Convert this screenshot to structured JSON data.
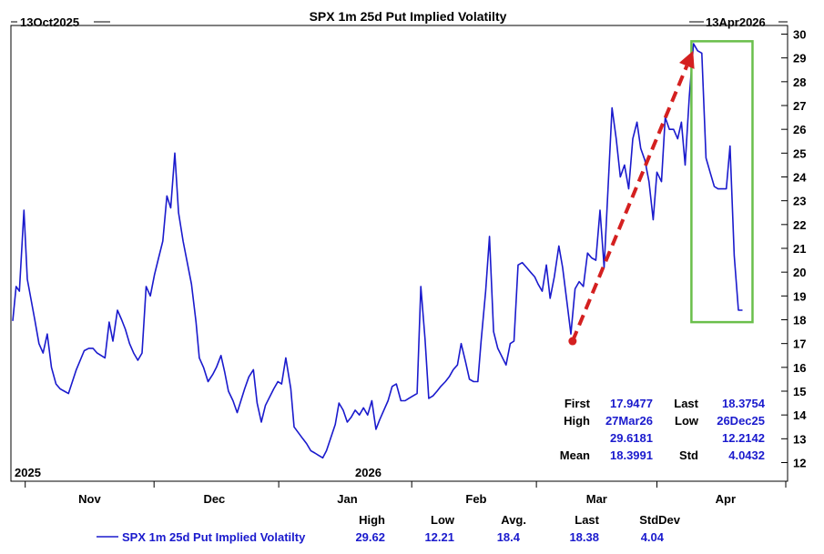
{
  "chart_data": {
    "type": "line",
    "title": "SPX 1m 25d Put Implied Volatilty",
    "start_label": "13Oct2025",
    "end_label": "13Apr2026",
    "xlabel": "",
    "ylabel": "",
    "ylim": [
      11.5,
      30
    ],
    "yticks": [
      12,
      13,
      14,
      15,
      16,
      17,
      18,
      19,
      20,
      21,
      22,
      23,
      24,
      25,
      26,
      27,
      28,
      29,
      30
    ],
    "x_month_labels": [
      {
        "label": "Nov",
        "day": 18.5
      },
      {
        "label": "Dec",
        "day": 48.5
      },
      {
        "label": "Jan",
        "day": 80.5
      },
      {
        "label": "Feb",
        "day": 111.5
      },
      {
        "label": "Mar",
        "day": 140.5
      },
      {
        "label": "Apr",
        "day": 171.5
      }
    ],
    "year_labels": [
      {
        "label": "2025",
        "day": 0.5
      },
      {
        "label": "2026",
        "day": 81
      }
    ],
    "x_total_days": 186,
    "series": [
      {
        "name": "SPX 1m 25d Put Implied Volatilty",
        "color": "#1a1acd",
        "points": [
          [
            0,
            17.95
          ],
          [
            0.8,
            19.4
          ],
          [
            1.6,
            19.2
          ],
          [
            2.7,
            22.6
          ],
          [
            3.5,
            19.7
          ],
          [
            5.3,
            18.0
          ],
          [
            6.3,
            17.0
          ],
          [
            7.3,
            16.6
          ],
          [
            8.3,
            17.4
          ],
          [
            9.3,
            16.0
          ],
          [
            10.4,
            15.3
          ],
          [
            11.4,
            15.1
          ],
          [
            12.4,
            15.0
          ],
          [
            13.4,
            14.9
          ],
          [
            15.3,
            15.9
          ],
          [
            17.2,
            16.7
          ],
          [
            18.3,
            16.8
          ],
          [
            19.3,
            16.8
          ],
          [
            20.3,
            16.6
          ],
          [
            22.2,
            16.4
          ],
          [
            23.2,
            17.9
          ],
          [
            24.1,
            17.1
          ],
          [
            25.2,
            18.4
          ],
          [
            26.2,
            18.0
          ],
          [
            27.1,
            17.6
          ],
          [
            28.1,
            17.0
          ],
          [
            29.1,
            16.6
          ],
          [
            30.1,
            16.3
          ],
          [
            31.1,
            16.6
          ],
          [
            32.1,
            19.4
          ],
          [
            33.1,
            19.0
          ],
          [
            34.1,
            19.9
          ],
          [
            35.1,
            20.6
          ],
          [
            36.1,
            21.3
          ],
          [
            37.1,
            23.2
          ],
          [
            38.0,
            22.7
          ],
          [
            39.0,
            25.0
          ],
          [
            39.9,
            22.5
          ],
          [
            41.0,
            21.3
          ],
          [
            43.0,
            19.5
          ],
          [
            44.1,
            17.9
          ],
          [
            44.9,
            16.4
          ],
          [
            45.9,
            16.0
          ],
          [
            47.0,
            15.4
          ],
          [
            48.1,
            15.7
          ],
          [
            49.0,
            16.0
          ],
          [
            50.1,
            16.5
          ],
          [
            51.0,
            15.8
          ],
          [
            51.9,
            15.0
          ],
          [
            53.0,
            14.6
          ],
          [
            54.0,
            14.1
          ],
          [
            55.8,
            15.1
          ],
          [
            56.8,
            15.6
          ],
          [
            57.9,
            15.9
          ],
          [
            58.8,
            14.5
          ],
          [
            59.8,
            13.7
          ],
          [
            60.8,
            14.4
          ],
          [
            62.8,
            15.1
          ],
          [
            63.8,
            15.4
          ],
          [
            64.7,
            15.3
          ],
          [
            65.7,
            16.4
          ],
          [
            66.9,
            15.1
          ],
          [
            67.7,
            13.5
          ],
          [
            69.8,
            13.0
          ],
          [
            70.7,
            12.8
          ],
          [
            71.7,
            12.5
          ],
          [
            72.7,
            12.4
          ],
          [
            73.6,
            12.3
          ],
          [
            74.6,
            12.2
          ],
          [
            75.5,
            12.5
          ],
          [
            77.6,
            13.6
          ],
          [
            78.5,
            14.5
          ],
          [
            79.5,
            14.2
          ],
          [
            80.5,
            13.7
          ],
          [
            81.4,
            13.9
          ],
          [
            82.4,
            14.2
          ],
          [
            83.4,
            14.0
          ],
          [
            84.4,
            14.3
          ],
          [
            85.4,
            14.0
          ],
          [
            86.4,
            14.6
          ],
          [
            87.4,
            13.4
          ],
          [
            88.3,
            13.8
          ],
          [
            89.3,
            14.2
          ],
          [
            90.3,
            14.6
          ],
          [
            91.3,
            15.2
          ],
          [
            92.3,
            15.3
          ],
          [
            93.4,
            14.6
          ],
          [
            94.4,
            14.6
          ],
          [
            95.3,
            14.7
          ],
          [
            96.3,
            14.8
          ],
          [
            97.3,
            14.9
          ],
          [
            98.2,
            19.4
          ],
          [
            99.2,
            17.2
          ],
          [
            100.1,
            14.7
          ],
          [
            101.1,
            14.8
          ],
          [
            102.1,
            15.0
          ],
          [
            103.0,
            15.2
          ],
          [
            104.1,
            15.4
          ],
          [
            105.0,
            15.6
          ],
          [
            106.0,
            15.9
          ],
          [
            107.0,
            16.1
          ],
          [
            107.9,
            17.0
          ],
          [
            109.0,
            16.2
          ],
          [
            109.9,
            15.5
          ],
          [
            110.9,
            15.4
          ],
          [
            111.9,
            15.4
          ],
          [
            112.7,
            17.1
          ],
          [
            113.8,
            19.2
          ],
          [
            114.7,
            21.5
          ],
          [
            115.7,
            17.5
          ],
          [
            116.7,
            16.8
          ],
          [
            118.7,
            16.1
          ],
          [
            119.7,
            17.0
          ],
          [
            120.6,
            17.1
          ],
          [
            121.6,
            20.3
          ],
          [
            122.6,
            20.4
          ],
          [
            123.6,
            20.2
          ],
          [
            124.6,
            20.0
          ],
          [
            125.6,
            19.8
          ],
          [
            126.4,
            19.5
          ],
          [
            127.4,
            19.2
          ],
          [
            128.4,
            20.3
          ],
          [
            129.3,
            18.9
          ],
          [
            130.3,
            19.8
          ],
          [
            131.4,
            21.1
          ],
          [
            132.3,
            20.2
          ],
          [
            133.3,
            18.8
          ],
          [
            134.3,
            17.4
          ],
          [
            135.3,
            19.3
          ],
          [
            136.3,
            19.6
          ],
          [
            137.3,
            19.4
          ],
          [
            138.3,
            20.8
          ],
          [
            139.3,
            20.6
          ],
          [
            140.3,
            20.5
          ],
          [
            141.3,
            22.6
          ],
          [
            142.3,
            20.2
          ],
          [
            144.2,
            26.9
          ],
          [
            145.2,
            25.6
          ],
          [
            146.2,
            24.0
          ],
          [
            147.2,
            24.5
          ],
          [
            148.2,
            23.5
          ],
          [
            149.2,
            25.6
          ],
          [
            150.2,
            26.3
          ],
          [
            151.1,
            25.2
          ],
          [
            152.1,
            24.7
          ],
          [
            153.1,
            23.8
          ],
          [
            154.1,
            22.2
          ],
          [
            155.0,
            24.2
          ],
          [
            156.1,
            23.8
          ],
          [
            157.0,
            26.5
          ],
          [
            158.0,
            26.0
          ],
          [
            159.0,
            26.0
          ],
          [
            160.0,
            25.6
          ],
          [
            160.9,
            26.3
          ],
          [
            161.8,
            24.5
          ],
          [
            162.8,
            27.4
          ],
          [
            163.8,
            29.6
          ],
          [
            164.8,
            29.3
          ],
          [
            165.8,
            29.2
          ],
          [
            166.8,
            24.8
          ],
          [
            167.8,
            24.2
          ],
          [
            168.8,
            23.6
          ],
          [
            169.7,
            23.5
          ],
          [
            171.7,
            23.5
          ],
          [
            172.6,
            25.3
          ],
          [
            173.6,
            20.7
          ],
          [
            174.6,
            18.4
          ],
          [
            175.6,
            18.4
          ]
        ]
      }
    ],
    "arrow": {
      "from": [
        134.7,
        17.1
      ],
      "to": [
        163.7,
        29.3
      ],
      "color": "#d42020"
    },
    "highlight_box": {
      "x0": 163.3,
      "x1": 178.0,
      "y0": 17.9,
      "y1": 29.7,
      "color": "#6abf4b"
    },
    "stats_box": {
      "first_label": "First",
      "first_value": "17.9477",
      "last_label": "Last",
      "last_value": "18.3754",
      "high_label": "High",
      "high_date": "27Mar26",
      "high_value": "29.6181",
      "low_label": "Low",
      "low_date": "26Dec25",
      "low_value": "12.2142",
      "mean_label": "Mean",
      "mean_value": "18.3991",
      "std_label": "Std",
      "std_value": "4.0432"
    },
    "legend": {
      "headers": {
        "high": "High",
        "low": "Low",
        "avg": "Avg.",
        "last": "Last",
        "stddev": "StdDev"
      },
      "row": {
        "name": "SPX 1m 25d Put Implied Volatilty",
        "high": "29.62",
        "low": "12.21",
        "avg": "18.4",
        "last": "18.38",
        "stddev": "4.04"
      }
    }
  }
}
